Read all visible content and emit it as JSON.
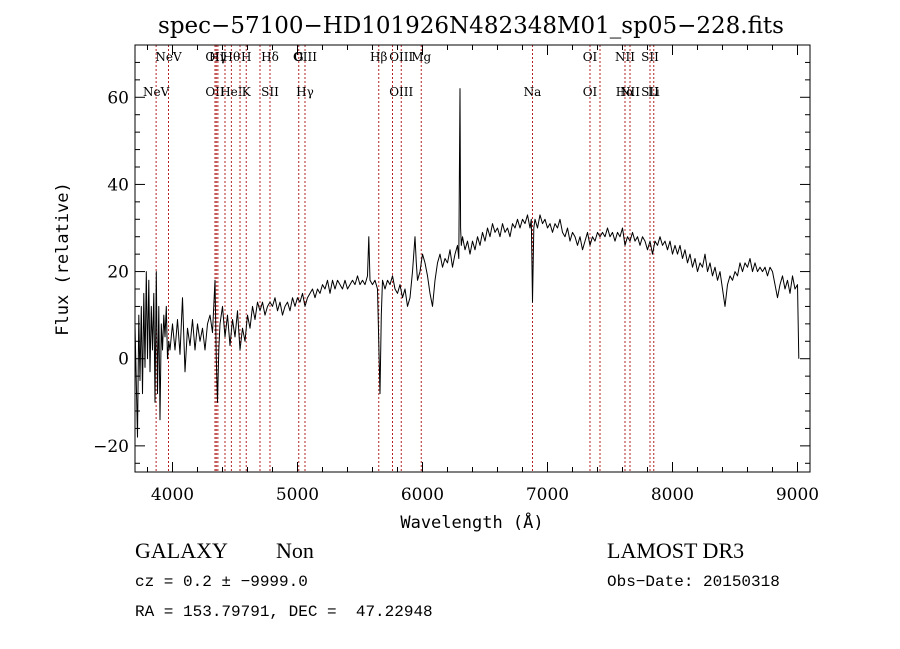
{
  "colors": {
    "axis": "#000000",
    "spectrum": "#000000",
    "line_marker": "#b22222",
    "background": "#ffffff"
  },
  "chart_data": {
    "type": "line",
    "title": "spec−57100−HD101926N482348M01_sp05−228.fits",
    "xlabel": "Wavelength (Å)",
    "ylabel": "Flux (relative)",
    "xlim": [
      3700,
      9100
    ],
    "ylim": [
      -26,
      72
    ],
    "xticks": [
      4000,
      5000,
      6000,
      7000,
      8000,
      9000
    ],
    "xtick_labels": [
      "4000",
      "5000",
      "6000",
      "7000",
      "8000",
      "9000"
    ],
    "yticks": [
      -20,
      0,
      20,
      40,
      60
    ],
    "ytick_labels": [
      "−20",
      "0",
      "20",
      "40",
      "60"
    ],
    "grid": false,
    "series": [
      {
        "points": [
          [
            3700,
            8
          ],
          [
            3720,
            -18
          ],
          [
            3730,
            10
          ],
          [
            3740,
            -5
          ],
          [
            3750,
            12
          ],
          [
            3760,
            -8
          ],
          [
            3770,
            15
          ],
          [
            3780,
            -2
          ],
          [
            3790,
            20
          ],
          [
            3800,
            0
          ],
          [
            3810,
            18
          ],
          [
            3820,
            -3
          ],
          [
            3830,
            12
          ],
          [
            3840,
            2
          ],
          [
            3850,
            15
          ],
          [
            3860,
            -10
          ],
          [
            3870,
            20
          ],
          [
            3880,
            -8
          ],
          [
            3890,
            12
          ],
          [
            3900,
            -14
          ],
          [
            3910,
            8
          ],
          [
            3920,
            2
          ],
          [
            3930,
            10
          ],
          [
            3940,
            5
          ],
          [
            3950,
            12
          ],
          [
            3960,
            0
          ],
          [
            3970,
            4
          ],
          [
            3980,
            2
          ],
          [
            4000,
            8
          ],
          [
            4020,
            2
          ],
          [
            4040,
            9
          ],
          [
            4060,
            1
          ],
          [
            4080,
            14
          ],
          [
            4100,
            -3
          ],
          [
            4120,
            7
          ],
          [
            4140,
            3
          ],
          [
            4160,
            9
          ],
          [
            4180,
            2
          ],
          [
            4200,
            8
          ],
          [
            4220,
            4
          ],
          [
            4240,
            7
          ],
          [
            4260,
            2
          ],
          [
            4280,
            8
          ],
          [
            4300,
            10
          ],
          [
            4320,
            6
          ],
          [
            4340,
            18
          ],
          [
            4350,
            0
          ],
          [
            4360,
            -10
          ],
          [
            4370,
            2
          ],
          [
            4380,
            8
          ],
          [
            4400,
            12
          ],
          [
            4420,
            5
          ],
          [
            4440,
            10
          ],
          [
            4460,
            3
          ],
          [
            4480,
            9
          ],
          [
            4500,
            5
          ],
          [
            4520,
            11
          ],
          [
            4540,
            2
          ],
          [
            4560,
            7
          ],
          [
            4580,
            4
          ],
          [
            4600,
            10
          ],
          [
            4620,
            7
          ],
          [
            4640,
            12
          ],
          [
            4660,
            9
          ],
          [
            4680,
            13
          ],
          [
            4700,
            11
          ],
          [
            4720,
            13
          ],
          [
            4740,
            10
          ],
          [
            4760,
            12
          ],
          [
            4780,
            13
          ],
          [
            4800,
            12
          ],
          [
            4820,
            14
          ],
          [
            4840,
            11
          ],
          [
            4860,
            13
          ],
          [
            4880,
            10
          ],
          [
            4900,
            12
          ],
          [
            4920,
            13
          ],
          [
            4940,
            11
          ],
          [
            4960,
            14
          ],
          [
            4980,
            12
          ],
          [
            5000,
            14
          ],
          [
            5020,
            13
          ],
          [
            5040,
            15
          ],
          [
            5060,
            12
          ],
          [
            5080,
            14
          ],
          [
            5100,
            15
          ],
          [
            5120,
            16
          ],
          [
            5140,
            14
          ],
          [
            5160,
            16
          ],
          [
            5180,
            15
          ],
          [
            5200,
            17
          ],
          [
            5220,
            16
          ],
          [
            5240,
            18
          ],
          [
            5260,
            15
          ],
          [
            5280,
            18
          ],
          [
            5300,
            16
          ],
          [
            5320,
            18
          ],
          [
            5340,
            17
          ],
          [
            5360,
            16
          ],
          [
            5380,
            18
          ],
          [
            5400,
            16
          ],
          [
            5420,
            17
          ],
          [
            5440,
            18
          ],
          [
            5460,
            17
          ],
          [
            5480,
            19
          ],
          [
            5500,
            17
          ],
          [
            5520,
            18
          ],
          [
            5540,
            17
          ],
          [
            5560,
            19
          ],
          [
            5570,
            28
          ],
          [
            5580,
            18
          ],
          [
            5600,
            17
          ],
          [
            5620,
            18
          ],
          [
            5640,
            16
          ],
          [
            5660,
            -8
          ],
          [
            5670,
            10
          ],
          [
            5680,
            18
          ],
          [
            5700,
            16
          ],
          [
            5720,
            18
          ],
          [
            5740,
            17
          ],
          [
            5760,
            19
          ],
          [
            5780,
            16
          ],
          [
            5800,
            15
          ],
          [
            5820,
            17
          ],
          [
            5840,
            14
          ],
          [
            5860,
            16
          ],
          [
            5880,
            12
          ],
          [
            5900,
            14
          ],
          [
            5920,
            20
          ],
          [
            5940,
            28
          ],
          [
            5950,
            22
          ],
          [
            5960,
            18
          ],
          [
            5980,
            20
          ],
          [
            6000,
            24
          ],
          [
            6020,
            22
          ],
          [
            6040,
            19
          ],
          [
            6060,
            15
          ],
          [
            6080,
            12
          ],
          [
            6100,
            18
          ],
          [
            6120,
            22
          ],
          [
            6140,
            24
          ],
          [
            6160,
            21
          ],
          [
            6180,
            23
          ],
          [
            6200,
            22
          ],
          [
            6220,
            25
          ],
          [
            6240,
            21
          ],
          [
            6260,
            24
          ],
          [
            6280,
            26
          ],
          [
            6290,
            23
          ],
          [
            6300,
            62
          ],
          [
            6305,
            30
          ],
          [
            6310,
            26
          ],
          [
            6320,
            28
          ],
          [
            6340,
            25
          ],
          [
            6360,
            27
          ],
          [
            6380,
            24
          ],
          [
            6400,
            27
          ],
          [
            6420,
            25
          ],
          [
            6440,
            28
          ],
          [
            6460,
            26
          ],
          [
            6480,
            29
          ],
          [
            6500,
            27
          ],
          [
            6520,
            30
          ],
          [
            6540,
            28
          ],
          [
            6560,
            31
          ],
          [
            6580,
            29
          ],
          [
            6600,
            30
          ],
          [
            6620,
            28
          ],
          [
            6640,
            31
          ],
          [
            6660,
            29
          ],
          [
            6680,
            30
          ],
          [
            6700,
            28
          ],
          [
            6720,
            31
          ],
          [
            6740,
            30
          ],
          [
            6760,
            32
          ],
          [
            6780,
            30
          ],
          [
            6800,
            32
          ],
          [
            6820,
            31
          ],
          [
            6840,
            33
          ],
          [
            6860,
            30
          ],
          [
            6870,
            32
          ],
          [
            6880,
            13
          ],
          [
            6890,
            30
          ],
          [
            6900,
            32
          ],
          [
            6920,
            30
          ],
          [
            6940,
            33
          ],
          [
            6960,
            31
          ],
          [
            6980,
            32
          ],
          [
            7000,
            30
          ],
          [
            7020,
            31
          ],
          [
            7040,
            29
          ],
          [
            7060,
            31
          ],
          [
            7080,
            30
          ],
          [
            7100,
            32
          ],
          [
            7120,
            29
          ],
          [
            7140,
            28
          ],
          [
            7160,
            30
          ],
          [
            7180,
            27
          ],
          [
            7200,
            29
          ],
          [
            7220,
            28
          ],
          [
            7240,
            26
          ],
          [
            7260,
            28
          ],
          [
            7280,
            25
          ],
          [
            7300,
            27
          ],
          [
            7320,
            29
          ],
          [
            7340,
            26
          ],
          [
            7360,
            28
          ],
          [
            7380,
            27
          ],
          [
            7400,
            29
          ],
          [
            7420,
            28
          ],
          [
            7440,
            29
          ],
          [
            7460,
            28
          ],
          [
            7480,
            30
          ],
          [
            7500,
            28
          ],
          [
            7520,
            29
          ],
          [
            7540,
            27
          ],
          [
            7560,
            29
          ],
          [
            7580,
            28
          ],
          [
            7600,
            30
          ],
          [
            7620,
            26
          ],
          [
            7640,
            28
          ],
          [
            7660,
            27
          ],
          [
            7680,
            29
          ],
          [
            7700,
            27
          ],
          [
            7720,
            28
          ],
          [
            7740,
            26
          ],
          [
            7760,
            28
          ],
          [
            7780,
            27
          ],
          [
            7800,
            25
          ],
          [
            7820,
            27
          ],
          [
            7840,
            24
          ],
          [
            7860,
            27
          ],
          [
            7880,
            26
          ],
          [
            7900,
            28
          ],
          [
            7920,
            26
          ],
          [
            7940,
            27
          ],
          [
            7960,
            25
          ],
          [
            7980,
            27
          ],
          [
            8000,
            24
          ],
          [
            8020,
            26
          ],
          [
            8040,
            24
          ],
          [
            8060,
            26
          ],
          [
            8080,
            23
          ],
          [
            8100,
            25
          ],
          [
            8120,
            22
          ],
          [
            8140,
            24
          ],
          [
            8160,
            21
          ],
          [
            8180,
            23
          ],
          [
            8200,
            20
          ],
          [
            8220,
            22
          ],
          [
            8240,
            21
          ],
          [
            8260,
            24
          ],
          [
            8280,
            20
          ],
          [
            8300,
            22
          ],
          [
            8320,
            19
          ],
          [
            8340,
            21
          ],
          [
            8360,
            18
          ],
          [
            8380,
            20
          ],
          [
            8400,
            16
          ],
          [
            8420,
            12
          ],
          [
            8440,
            17
          ],
          [
            8460,
            19
          ],
          [
            8480,
            18
          ],
          [
            8500,
            20
          ],
          [
            8520,
            19
          ],
          [
            8540,
            22
          ],
          [
            8560,
            20
          ],
          [
            8580,
            22
          ],
          [
            8600,
            21
          ],
          [
            8620,
            23
          ],
          [
            8640,
            20
          ],
          [
            8660,
            22
          ],
          [
            8680,
            20
          ],
          [
            8700,
            21
          ],
          [
            8720,
            20
          ],
          [
            8740,
            21
          ],
          [
            8760,
            19
          ],
          [
            8780,
            21
          ],
          [
            8800,
            20
          ],
          [
            8820,
            17
          ],
          [
            8840,
            14
          ],
          [
            8860,
            17
          ],
          [
            8880,
            19
          ],
          [
            8900,
            16
          ],
          [
            8920,
            18
          ],
          [
            8940,
            15
          ],
          [
            8960,
            19
          ],
          [
            8980,
            16
          ],
          [
            9000,
            17
          ],
          [
            9010,
            0
          ]
        ]
      }
    ],
    "line_markers": [
      {
        "wavelength": 3869,
        "top": "",
        "bottom": "NeV"
      },
      {
        "wavelength": 3968,
        "top": "NeV",
        "bottom": ""
      },
      {
        "wavelength": 4340,
        "top": "OII",
        "bottom": "OII"
      },
      {
        "wavelength": 4350,
        "top": "",
        "bottom": ""
      },
      {
        "wavelength": 4363,
        "top": "Hγ",
        "bottom": ""
      },
      {
        "wavelength": 4420,
        "top": "",
        "bottom": ""
      },
      {
        "wavelength": 4471,
        "top": "Hθ",
        "bottom": "HeI"
      },
      {
        "wavelength": 4540,
        "top": "",
        "bottom": ""
      },
      {
        "wavelength": 4590,
        "top": "H",
        "bottom": "K"
      },
      {
        "wavelength": 4700,
        "top": "",
        "bottom": ""
      },
      {
        "wavelength": 4780,
        "top": "Hδ",
        "bottom": "SII"
      },
      {
        "wavelength": 5010,
        "top": "G",
        "bottom": ""
      },
      {
        "wavelength": 5060,
        "top": "OIII",
        "bottom": "Hγ"
      },
      {
        "wavelength": 5650,
        "top": "Hβ",
        "bottom": ""
      },
      {
        "wavelength": 5760,
        "top": "",
        "bottom": ""
      },
      {
        "wavelength": 5830,
        "top": "OIII",
        "bottom": "OIII"
      },
      {
        "wavelength": 5990,
        "top": "Mg",
        "bottom": ""
      },
      {
        "wavelength": 6880,
        "top": "",
        "bottom": "Na"
      },
      {
        "wavelength": 7340,
        "top": "OI",
        "bottom": "OI"
      },
      {
        "wavelength": 7420,
        "top": "",
        "bottom": ""
      },
      {
        "wavelength": 7620,
        "top": "NII",
        "bottom": "Hα"
      },
      {
        "wavelength": 7660,
        "top": "",
        "bottom": "NII"
      },
      {
        "wavelength": 7820,
        "top": "SII",
        "bottom": "SII"
      },
      {
        "wavelength": 7850,
        "top": "",
        "bottom": "Li"
      }
    ]
  },
  "info": {
    "object_class": "GALAXY",
    "subclass": "Non",
    "survey": "LAMOST DR3",
    "redshift": "cz = 0.2 ± −9999.0",
    "obs_date": "Obs−Date: 20150318",
    "coordinates": "RA = 153.79791, DEC =  47.22948"
  }
}
